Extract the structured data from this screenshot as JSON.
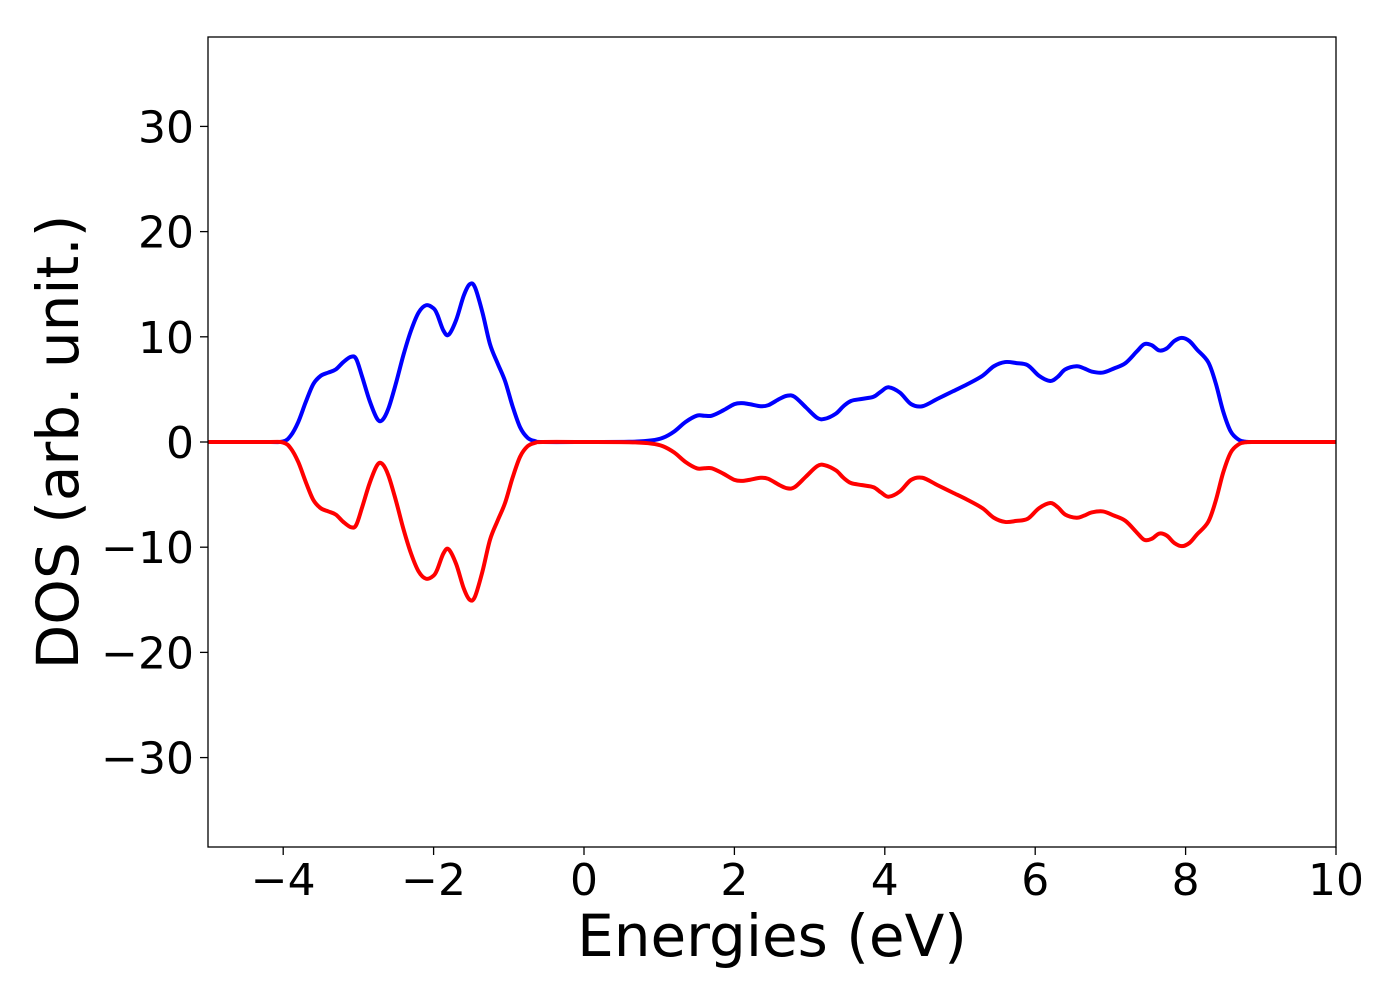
{
  "chart_data": {
    "type": "line",
    "title": "",
    "xlabel": "Energies (eV)",
    "ylabel": "DOS (arb. unit.)",
    "xlim": [
      -5,
      10
    ],
    "ylim": [
      -38.5,
      38.5
    ],
    "xticks": [
      -4,
      -2,
      0,
      2,
      4,
      6,
      8,
      10
    ],
    "xtick_labels": [
      "−4",
      "−2",
      "0",
      "2",
      "4",
      "6",
      "8",
      "10"
    ],
    "yticks": [
      -30,
      -20,
      -10,
      0,
      10,
      20,
      30
    ],
    "ytick_labels": [
      "−30",
      "−20",
      "−10",
      "0",
      "10",
      "20",
      "30"
    ],
    "grid": false,
    "legend": "none",
    "series": [
      {
        "color": "#0000ff",
        "x": [
          -5,
          -4.2,
          -4.0,
          -3.9,
          -3.8,
          -3.7,
          -3.6,
          -3.5,
          -3.4,
          -3.3,
          -3.2,
          -3.1,
          -3.03,
          -2.95,
          -2.85,
          -2.75,
          -2.68,
          -2.6,
          -2.5,
          -2.4,
          -2.3,
          -2.2,
          -2.1,
          -2.0,
          -1.95,
          -1.87,
          -1.8,
          -1.7,
          -1.6,
          -1.52,
          -1.45,
          -1.35,
          -1.25,
          -1.15,
          -1.05,
          -0.95,
          -0.85,
          -0.75,
          -0.65,
          -0.55,
          0,
          0.6,
          0.9,
          1.05,
          1.2,
          1.35,
          1.5,
          1.6,
          1.7,
          1.85,
          2.0,
          2.1,
          2.2,
          2.35,
          2.45,
          2.6,
          2.7,
          2.8,
          2.95,
          3.1,
          3.2,
          3.35,
          3.45,
          3.55,
          3.7,
          3.85,
          3.95,
          4.05,
          4.2,
          4.35,
          4.5,
          4.7,
          4.9,
          5.1,
          5.3,
          5.45,
          5.6,
          5.75,
          5.9,
          6.05,
          6.2,
          6.3,
          6.4,
          6.55,
          6.65,
          6.75,
          6.9,
          7.05,
          7.2,
          7.35,
          7.45,
          7.55,
          7.65,
          7.75,
          7.85,
          7.95,
          8.05,
          8.15,
          8.3,
          8.4,
          8.5,
          8.6,
          8.7,
          8.8,
          9.0,
          10.0
        ],
        "y": [
          0,
          0,
          0.05,
          0.6,
          1.9,
          3.8,
          5.5,
          6.3,
          6.6,
          6.9,
          7.6,
          8.1,
          7.9,
          6.2,
          3.9,
          2.2,
          2.1,
          3.2,
          5.6,
          8.3,
          10.6,
          12.3,
          13.0,
          12.7,
          12.1,
          10.6,
          10.2,
          11.6,
          13.9,
          15.0,
          14.7,
          12.3,
          9.3,
          7.5,
          5.8,
          3.4,
          1.4,
          0.4,
          0.08,
          0,
          0,
          0.02,
          0.15,
          0.4,
          1.0,
          1.9,
          2.5,
          2.5,
          2.5,
          3.0,
          3.6,
          3.7,
          3.6,
          3.4,
          3.5,
          4.1,
          4.4,
          4.3,
          3.3,
          2.3,
          2.2,
          2.7,
          3.4,
          3.9,
          4.1,
          4.3,
          4.8,
          5.2,
          4.7,
          3.6,
          3.4,
          4.1,
          4.8,
          5.5,
          6.3,
          7.2,
          7.6,
          7.5,
          7.3,
          6.3,
          5.8,
          6.2,
          6.9,
          7.2,
          7.0,
          6.7,
          6.6,
          7.0,
          7.5,
          8.6,
          9.3,
          9.2,
          8.7,
          8.9,
          9.6,
          9.9,
          9.6,
          8.8,
          7.6,
          5.6,
          2.9,
          1.0,
          0.25,
          0.03,
          0,
          0
        ]
      },
      {
        "color": "#ff0000",
        "x": [
          -5,
          -4.2,
          -4.0,
          -3.9,
          -3.8,
          -3.7,
          -3.6,
          -3.5,
          -3.4,
          -3.3,
          -3.2,
          -3.1,
          -3.03,
          -2.95,
          -2.85,
          -2.75,
          -2.68,
          -2.6,
          -2.5,
          -2.4,
          -2.3,
          -2.2,
          -2.1,
          -2.0,
          -1.95,
          -1.87,
          -1.8,
          -1.7,
          -1.6,
          -1.52,
          -1.45,
          -1.35,
          -1.25,
          -1.15,
          -1.05,
          -0.95,
          -0.85,
          -0.75,
          -0.65,
          -0.55,
          0,
          0.6,
          0.9,
          1.05,
          1.2,
          1.35,
          1.5,
          1.6,
          1.7,
          1.85,
          2.0,
          2.1,
          2.2,
          2.35,
          2.45,
          2.6,
          2.7,
          2.8,
          2.95,
          3.1,
          3.2,
          3.35,
          3.45,
          3.55,
          3.7,
          3.85,
          3.95,
          4.05,
          4.2,
          4.35,
          4.5,
          4.7,
          4.9,
          5.1,
          5.3,
          5.45,
          5.6,
          5.75,
          5.9,
          6.05,
          6.2,
          6.3,
          6.4,
          6.55,
          6.65,
          6.75,
          6.9,
          7.05,
          7.2,
          7.35,
          7.45,
          7.55,
          7.65,
          7.75,
          7.85,
          7.95,
          8.05,
          8.15,
          8.3,
          8.4,
          8.5,
          8.6,
          8.7,
          8.8,
          9.0,
          10.0
        ],
        "y": [
          0,
          0,
          -0.05,
          -0.6,
          -1.9,
          -3.8,
          -5.5,
          -6.3,
          -6.6,
          -6.9,
          -7.6,
          -8.1,
          -7.9,
          -6.2,
          -3.9,
          -2.2,
          -2.1,
          -3.2,
          -5.6,
          -8.3,
          -10.6,
          -12.3,
          -13.0,
          -12.7,
          -12.1,
          -10.6,
          -10.2,
          -11.6,
          -13.9,
          -15.0,
          -14.7,
          -12.3,
          -9.3,
          -7.5,
          -5.8,
          -3.4,
          -1.4,
          -0.4,
          -0.08,
          0,
          0,
          -0.02,
          -0.15,
          -0.4,
          -1.0,
          -1.9,
          -2.5,
          -2.5,
          -2.5,
          -3.0,
          -3.6,
          -3.7,
          -3.6,
          -3.4,
          -3.5,
          -4.1,
          -4.4,
          -4.3,
          -3.3,
          -2.3,
          -2.2,
          -2.7,
          -3.4,
          -3.9,
          -4.1,
          -4.3,
          -4.8,
          -5.2,
          -4.7,
          -3.6,
          -3.4,
          -4.1,
          -4.8,
          -5.5,
          -6.3,
          -7.2,
          -7.6,
          -7.5,
          -7.3,
          -6.3,
          -5.8,
          -6.2,
          -6.9,
          -7.2,
          -7.0,
          -6.7,
          -6.6,
          -7.0,
          -7.5,
          -8.6,
          -9.3,
          -9.2,
          -8.7,
          -8.9,
          -9.6,
          -9.9,
          -9.6,
          -8.8,
          -7.6,
          -5.6,
          -2.9,
          -1.0,
          -0.25,
          -0.03,
          0,
          0
        ]
      }
    ]
  }
}
